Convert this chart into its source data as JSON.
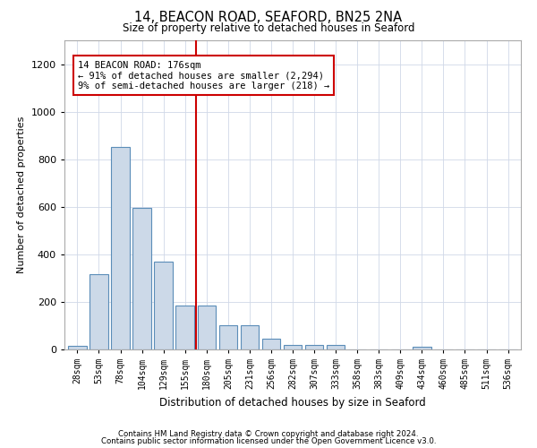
{
  "title1": "14, BEACON ROAD, SEAFORD, BN25 2NA",
  "title2": "Size of property relative to detached houses in Seaford",
  "xlabel": "Distribution of detached houses by size in Seaford",
  "ylabel": "Number of detached properties",
  "categories": [
    "28sqm",
    "53sqm",
    "78sqm",
    "104sqm",
    "129sqm",
    "155sqm",
    "180sqm",
    "205sqm",
    "231sqm",
    "256sqm",
    "282sqm",
    "307sqm",
    "333sqm",
    "358sqm",
    "383sqm",
    "409sqm",
    "434sqm",
    "460sqm",
    "485sqm",
    "511sqm",
    "536sqm"
  ],
  "values": [
    15,
    315,
    850,
    595,
    370,
    185,
    185,
    100,
    100,
    45,
    20,
    18,
    17,
    0,
    0,
    0,
    12,
    0,
    0,
    0,
    0
  ],
  "bar_color": "#ccd9e8",
  "bar_edge_color": "#5b8db8",
  "vline_color": "#cc0000",
  "vline_pos": 5.5,
  "annotation_text": "14 BEACON ROAD: 176sqm\n← 91% of detached houses are smaller (2,294)\n9% of semi-detached houses are larger (218) →",
  "annotation_box_color": "#ffffff",
  "annotation_border_color": "#cc0000",
  "ylim": [
    0,
    1300
  ],
  "yticks": [
    0,
    200,
    400,
    600,
    800,
    1000,
    1200
  ],
  "footer1": "Contains HM Land Registry data © Crown copyright and database right 2024.",
  "footer2": "Contains public sector information licensed under the Open Government Licence v3.0.",
  "bg_color": "#ffffff",
  "grid_color": "#d0d8e8",
  "fig_width": 6.0,
  "fig_height": 5.0,
  "dpi": 100
}
